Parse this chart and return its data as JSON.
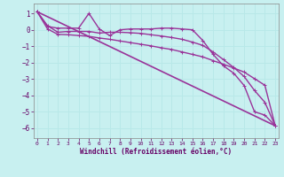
{
  "xlabel": "Windchill (Refroidissement éolien,°C)",
  "bg_color": "#c8f0f0",
  "grid_color": "#aadddd",
  "line_color": "#993399",
  "x_ticks": [
    0,
    1,
    2,
    3,
    4,
    5,
    6,
    7,
    8,
    9,
    10,
    11,
    12,
    13,
    14,
    15,
    16,
    17,
    18,
    19,
    20,
    21,
    22,
    23
  ],
  "y_ticks": [
    1,
    0,
    -1,
    -2,
    -3,
    -4,
    -5,
    -6
  ],
  "xlim": [
    -0.3,
    23.3
  ],
  "ylim": [
    -6.6,
    1.6
  ],
  "series": [
    {
      "x": [
        0,
        1,
        2,
        3,
        4,
        5,
        6,
        7,
        8,
        9,
        10,
        11,
        12,
        13,
        14,
        15,
        16,
        17,
        18,
        19,
        20,
        21,
        22,
        23
      ],
      "y": [
        1.1,
        0.2,
        0.1,
        0.1,
        0.1,
        1.0,
        0.05,
        -0.35,
        0.0,
        0.05,
        0.05,
        0.05,
        0.1,
        0.1,
        0.05,
        0.0,
        -0.65,
        -1.5,
        -2.2,
        -2.65,
        -3.4,
        -5.0,
        -5.2,
        -5.85
      ],
      "marker": true,
      "lw": 1.0
    },
    {
      "x": [
        0,
        23
      ],
      "y": [
        1.1,
        -5.85
      ],
      "marker": false,
      "lw": 1.2
    },
    {
      "x": [
        0,
        1,
        2,
        3,
        4,
        5,
        6,
        7,
        8,
        9,
        10,
        11,
        12,
        13,
        14,
        15,
        16,
        17,
        18,
        19,
        20,
        21,
        22,
        23
      ],
      "y": [
        1.1,
        0.25,
        -0.15,
        -0.1,
        -0.1,
        -0.1,
        -0.2,
        -0.15,
        -0.15,
        -0.18,
        -0.22,
        -0.3,
        -0.38,
        -0.47,
        -0.58,
        -0.75,
        -0.95,
        -1.35,
        -1.82,
        -2.3,
        -2.85,
        -3.7,
        -4.42,
        -5.85
      ],
      "marker": true,
      "lw": 1.0
    },
    {
      "x": [
        0,
        1,
        2,
        3,
        4,
        5,
        6,
        7,
        8,
        9,
        10,
        11,
        12,
        13,
        14,
        15,
        16,
        17,
        18,
        19,
        20,
        21,
        22,
        23
      ],
      "y": [
        1.1,
        0.05,
        -0.28,
        -0.3,
        -0.35,
        -0.4,
        -0.5,
        -0.58,
        -0.68,
        -0.78,
        -0.88,
        -0.98,
        -1.1,
        -1.2,
        -1.35,
        -1.5,
        -1.65,
        -1.88,
        -2.1,
        -2.33,
        -2.58,
        -2.98,
        -3.38,
        -5.85
      ],
      "marker": true,
      "lw": 1.0
    }
  ]
}
